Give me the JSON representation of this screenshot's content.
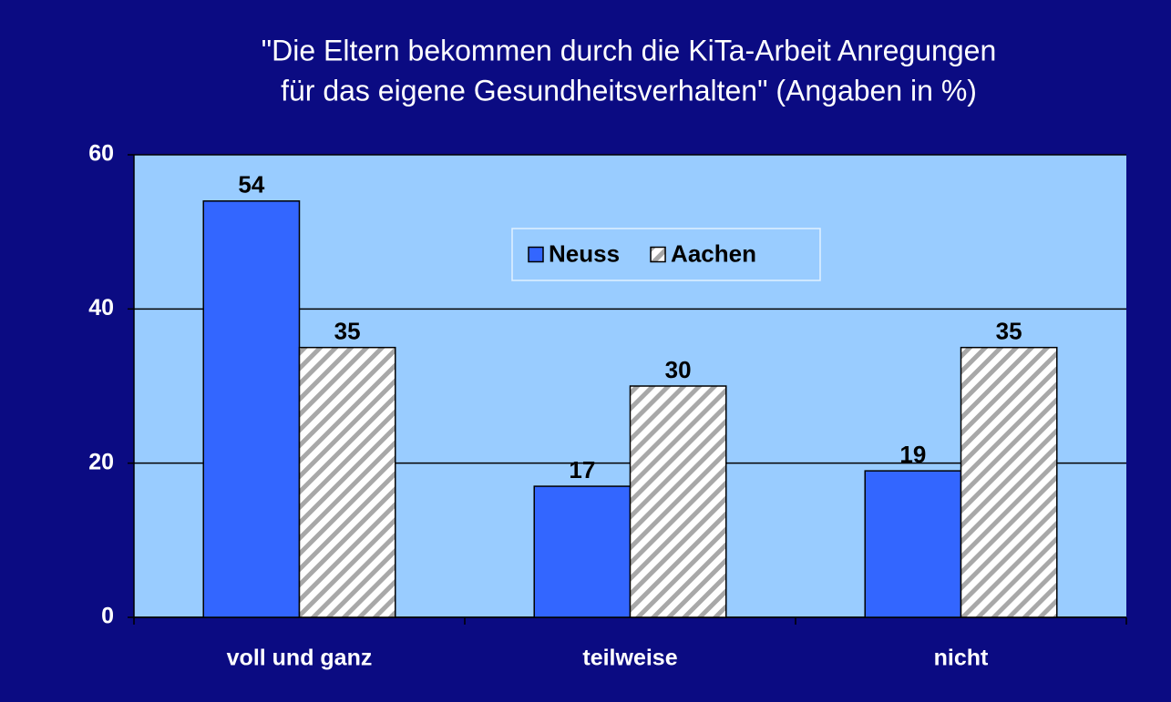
{
  "chart_data": {
    "type": "bar",
    "title_lines": [
      "\"Die Eltern bekommen durch die KiTa-Arbeit Anregungen",
      "für das eigene Gesundheitsverhalten\" (Angaben in %)"
    ],
    "categories": [
      "voll und ganz",
      "teilweise",
      "nicht"
    ],
    "series": [
      {
        "name": "Neuss",
        "color": "#3366ff",
        "values": [
          54,
          17,
          19
        ]
      },
      {
        "name": "Aachen",
        "color": "#ffffff",
        "hatch": "#a0a0a0",
        "values": [
          35,
          30,
          35
        ]
      }
    ],
    "ylim": [
      0,
      60
    ],
    "yticks": [
      0,
      20,
      40,
      60
    ],
    "grid": true,
    "legend": "top-center"
  }
}
